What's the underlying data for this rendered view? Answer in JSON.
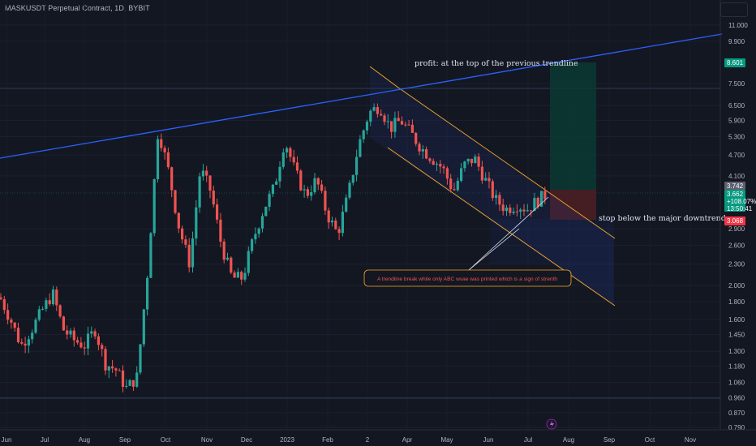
{
  "header": {
    "symbol_line": "MASKUSDT Perpetual Contract, 1D, BYBIT"
  },
  "colors": {
    "background": "#131722",
    "up": "#26a69a",
    "down": "#ef5350",
    "trendline": "#2962ff",
    "channel": "#f9a825",
    "profit_zone": "#0b3a34",
    "stop_zone": "#4a1f24"
  },
  "chart_data": {
    "type": "candlestick",
    "y_scale": "log",
    "y_ticks": [
      "11.000",
      "9.900",
      "8.601",
      "7.500",
      "6.500",
      "5.900",
      "5.300",
      "4.700",
      "4.100",
      "3.742",
      "3.662",
      "3.068",
      "2.900",
      "2.600",
      "2.300",
      "2.000",
      "1.800",
      "1.600",
      "1.450",
      "1.300",
      "1.180",
      "1.060",
      "0.960",
      "0.870",
      "0.790"
    ],
    "x_ticks": [
      "Jun",
      "Jul",
      "Aug",
      "Sep",
      "Oct",
      "Nov",
      "Dec",
      "2023",
      "Feb",
      "2",
      "Apr",
      "May",
      "Jun",
      "Jul",
      "Aug",
      "Sep",
      "Oct",
      "Nov"
    ],
    "price_labels": {
      "target": "8.601",
      "entry_top": "3.742",
      "last": "3.662",
      "change": "+108.07%",
      "countdown": "13:50:41",
      "stop": "3.068"
    },
    "annotations": {
      "profit": "profit: at the top of the previous trendline",
      "stop": "stop below the major downtrend",
      "callout": "A trendline break while only ABC wvae was printed which is a sign of strenth"
    },
    "waypoints": [
      {
        "date": "Jun",
        "price": 1.85
      },
      {
        "date": "Jun",
        "price": 1.6
      },
      {
        "date": "Jul",
        "price": 1.35
      },
      {
        "date": "Jul",
        "price": 1.5
      },
      {
        "date": "Aug",
        "price": 1.7
      },
      {
        "date": "Aug",
        "price": 1.9
      },
      {
        "date": "Aug",
        "price": 1.5
      },
      {
        "date": "Sep",
        "price": 1.4
      },
      {
        "date": "Sep",
        "price": 1.35
      },
      {
        "date": "Sep",
        "price": 1.5
      },
      {
        "date": "Oct",
        "price": 1.2
      },
      {
        "date": "Oct",
        "price": 1.15
      },
      {
        "date": "Oct",
        "price": 1.02
      },
      {
        "date": "Nov",
        "price": 1.1
      },
      {
        "date": "Nov",
        "price": 2.2
      },
      {
        "date": "Nov",
        "price": 5.6
      },
      {
        "date": "Nov",
        "price": 4.2
      },
      {
        "date": "Nov",
        "price": 2.9
      },
      {
        "date": "Nov",
        "price": 2.3
      },
      {
        "date": "Dec",
        "price": 4.3
      },
      {
        "date": "Dec",
        "price": 3.7
      },
      {
        "date": "Dec",
        "price": 2.6
      },
      {
        "date": "Dec",
        "price": 2.1
      },
      {
        "date": "2023",
        "price": 2.1
      },
      {
        "date": "2023",
        "price": 2.7
      },
      {
        "date": "2023",
        "price": 3.3
      },
      {
        "date": "Feb",
        "price": 3.8
      },
      {
        "date": "Feb",
        "price": 5.2
      },
      {
        "date": "Feb",
        "price": 4.2
      },
      {
        "date": "Feb",
        "price": 3.6
      },
      {
        "date": "Feb",
        "price": 4.0
      },
      {
        "date": "Feb",
        "price": 3.2
      },
      {
        "date": "2",
        "price": 2.8
      },
      {
        "date": "2",
        "price": 3.6
      },
      {
        "date": "2",
        "price": 5.0
      },
      {
        "date": "Apr",
        "price": 6.2
      },
      {
        "date": "Apr",
        "price": 6.5
      },
      {
        "date": "Apr",
        "price": 5.6
      },
      {
        "date": "Apr",
        "price": 5.9
      },
      {
        "date": "Apr",
        "price": 5.4
      },
      {
        "date": "May",
        "price": 4.9
      },
      {
        "date": "May",
        "price": 4.6
      },
      {
        "date": "May",
        "price": 4.3
      },
      {
        "date": "May",
        "price": 3.7
      },
      {
        "date": "May",
        "price": 4.4
      },
      {
        "date": "Jun",
        "price": 4.6
      },
      {
        "date": "Jun",
        "price": 4.0
      },
      {
        "date": "Jun",
        "price": 3.5
      },
      {
        "date": "Jun",
        "price": 3.3
      },
      {
        "date": "Jul",
        "price": 3.4
      },
      {
        "date": "Jul",
        "price": 3.3
      },
      {
        "date": "Jul",
        "price": 3.5
      },
      {
        "date": "Jul",
        "price": 3.66
      }
    ]
  }
}
